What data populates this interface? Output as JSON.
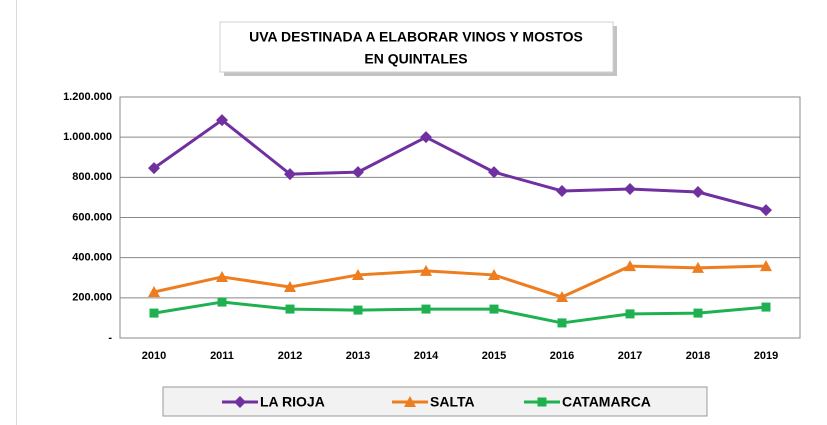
{
  "chart_data": {
    "type": "line",
    "title": [
      "UVA DESTINADA A ELABORAR VINOS Y MOSTOS",
      "EN QUINTALES"
    ],
    "categories": [
      "2010",
      "2011",
      "2012",
      "2013",
      "2014",
      "2015",
      "2016",
      "2017",
      "2018",
      "2019"
    ],
    "series": [
      {
        "name": "LA RIOJA",
        "color": "#7030a0",
        "marker": "diamond",
        "values": [
          846000,
          1085000,
          816000,
          826000,
          1000000,
          826000,
          732000,
          742000,
          727000,
          637000
        ]
      },
      {
        "name": "SALTA",
        "color": "#ed7d1f",
        "marker": "triangle",
        "values": [
          229000,
          304000,
          254000,
          314000,
          334000,
          314000,
          204000,
          358000,
          349000,
          358000
        ]
      },
      {
        "name": "CATAMARCA",
        "color": "#1fb14f",
        "marker": "square",
        "values": [
          124000,
          179000,
          144000,
          139000,
          144000,
          144000,
          75000,
          120000,
          124000,
          154000
        ]
      }
    ],
    "ylim": [
      0,
      1200000
    ],
    "yticks": [
      {
        "value": 0,
        "label": "-"
      },
      {
        "value": 200000,
        "label": "200.000"
      },
      {
        "value": 400000,
        "label": "400.000"
      },
      {
        "value": 600000,
        "label": "600.000"
      },
      {
        "value": 800000,
        "label": "800.000"
      },
      {
        "value": 1000000,
        "label": "1.000.000"
      },
      {
        "value": 1200000,
        "label": "1.200.000"
      }
    ],
    "grid": true,
    "legend": "bottom"
  }
}
